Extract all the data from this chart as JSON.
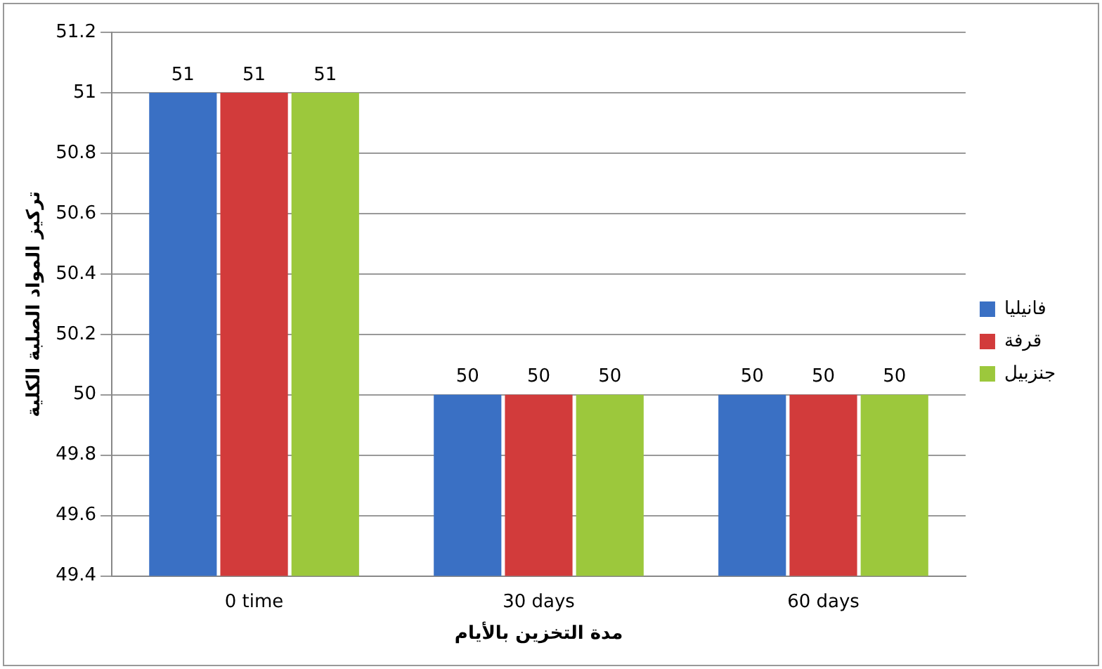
{
  "chart_data": {
    "type": "bar",
    "xlabel": "مدة التخزين بالأيام",
    "ylabel": "تركيز المواد الصلبة الكلية",
    "categories": [
      "0 time",
      "30 days",
      "60 days"
    ],
    "series": [
      {
        "name": "فانيليا",
        "color": "#3a70c4",
        "values": [
          51,
          50,
          50
        ]
      },
      {
        "name": "قرفة",
        "color": "#d23b3b",
        "values": [
          51,
          50,
          50
        ]
      },
      {
        "name": "جنزبيل",
        "color": "#9cc83c",
        "values": [
          51,
          50,
          50
        ]
      }
    ],
    "ylim": [
      49.4,
      51.2
    ],
    "yticks": [
      49.4,
      49.6,
      49.8,
      50,
      50.2,
      50.4,
      50.6,
      50.8,
      51,
      51.2
    ],
    "grid": "y",
    "legend": "right",
    "data_labels": true
  }
}
